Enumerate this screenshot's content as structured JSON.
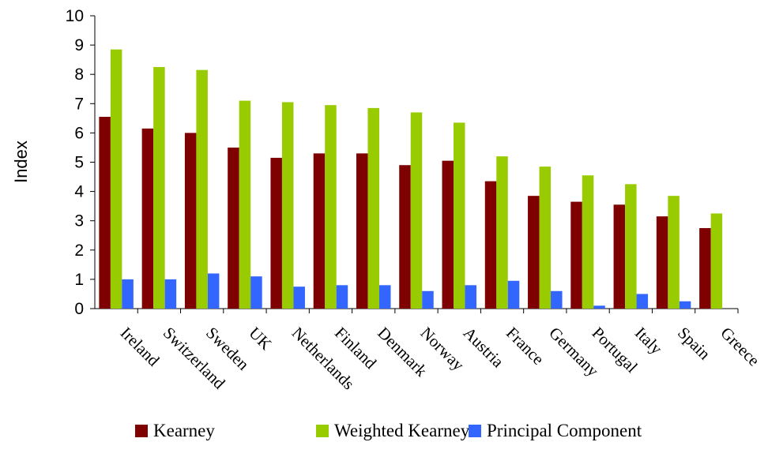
{
  "chart_data": {
    "type": "bar",
    "ylabel": "Index",
    "xlabel": "",
    "title": "",
    "ylim": [
      0,
      10
    ],
    "yticks": [
      "0",
      "1",
      "2",
      "3",
      "4",
      "5",
      "6",
      "7",
      "8",
      "9",
      "10"
    ],
    "grid": false,
    "legend_position": "bottom",
    "categories": [
      "Ireland",
      "Switzerland",
      "Sweden",
      "UK",
      "Netherlands",
      "Finland",
      "Denmark",
      "Norway",
      "Austria",
      "France",
      "Germany",
      "Portugal",
      "Italy",
      "Spain",
      "Greece"
    ],
    "series": [
      {
        "name": "Kearney",
        "color": "#7f0000",
        "values": [
          6.55,
          6.15,
          6.0,
          5.5,
          5.15,
          5.3,
          5.3,
          4.9,
          5.05,
          4.35,
          3.85,
          3.65,
          3.55,
          3.15,
          2.75
        ]
      },
      {
        "name": "Weighted Kearney",
        "color": "#99cc00",
        "values": [
          8.85,
          8.25,
          8.15,
          7.1,
          7.05,
          6.95,
          6.85,
          6.7,
          6.35,
          5.2,
          4.85,
          4.55,
          4.25,
          3.85,
          3.25
        ]
      },
      {
        "name": "Principal Component",
        "color": "#3366ff",
        "values": [
          1.0,
          1.0,
          1.2,
          1.1,
          0.75,
          0.8,
          0.8,
          0.6,
          0.8,
          0.95,
          0.6,
          0.1,
          0.5,
          0.25,
          0.0
        ]
      }
    ]
  }
}
